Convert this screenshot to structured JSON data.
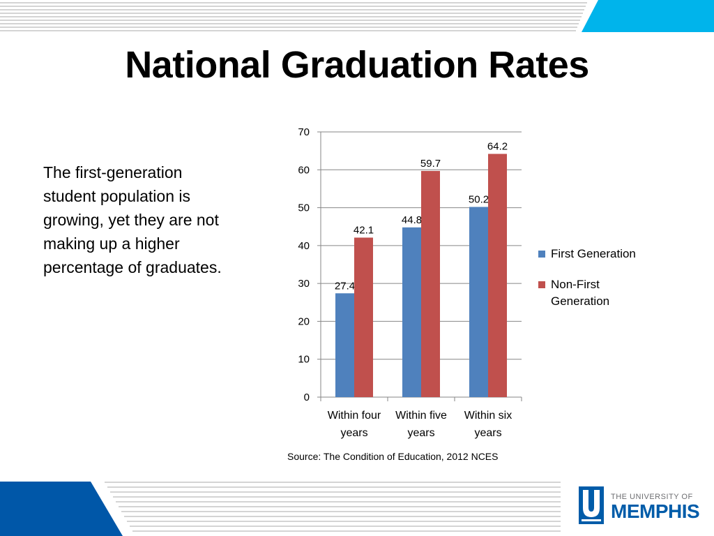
{
  "title": "National Graduation Rates",
  "body_lines": [
    "The first-generation",
    "student population is",
    "growing, yet they are not",
    "making up a higher",
    "percentage of graduates."
  ],
  "source": "Source: The Condition of Education, 2012 NCES",
  "logo": {
    "line1": "THE UNIVERSITY OF",
    "line2": "MEMPHIS"
  },
  "colors": {
    "first_generation": "#4f81bd",
    "non_first_generation": "#c0504d",
    "accent_cyan": "#00b4eb",
    "accent_blue": "#0057a8"
  },
  "chart_data": {
    "type": "bar",
    "title": "",
    "xlabel": "",
    "ylabel": "",
    "ylim": [
      0,
      70
    ],
    "yticks": [
      0,
      10,
      20,
      30,
      40,
      50,
      60,
      70
    ],
    "categories": [
      [
        "Within four",
        "years"
      ],
      [
        "Within five",
        "years"
      ],
      [
        "Within six",
        "years"
      ]
    ],
    "series": [
      {
        "name": "First Generation",
        "values": [
          27.4,
          44.8,
          50.2
        ]
      },
      {
        "name": "Non-First Generation",
        "values": [
          42.1,
          59.7,
          64.2
        ]
      }
    ],
    "legend": {
      "position": "right",
      "items": [
        [
          "First Generation"
        ],
        [
          "Non-First",
          "Generation"
        ]
      ]
    }
  }
}
